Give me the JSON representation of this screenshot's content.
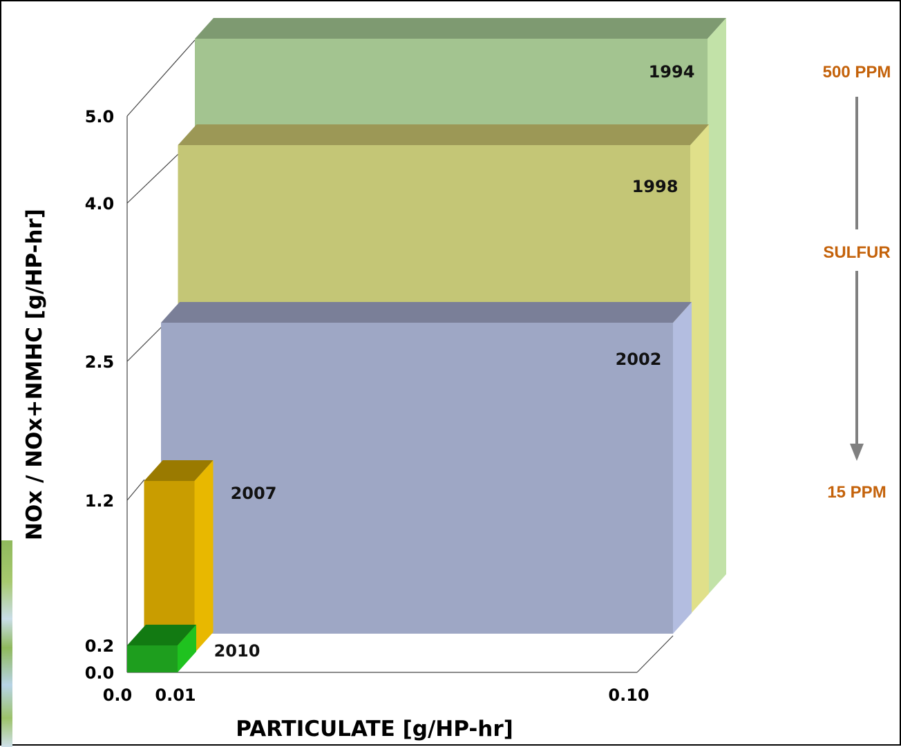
{
  "chart_data": {
    "type": "bar",
    "style": "3d-rectangles",
    "xlabel": "PARTICULATE [g/HP-hr]",
    "ylabel": "NOx / NOx+NMHC [g/HP-hr]",
    "x_ticks": [
      "0.0",
      "0.01",
      "0.10"
    ],
    "y_ticks": [
      "0.0",
      "0.2",
      "1.2",
      "2.5",
      "4.0",
      "5.0"
    ],
    "x_tick_values": [
      0.0,
      0.01,
      0.1
    ],
    "y_tick_values": [
      0.0,
      0.2,
      1.2,
      2.5,
      4.0,
      5.0
    ],
    "series": [
      {
        "name": "1994",
        "particulate": 0.1,
        "nox": 5.0,
        "color": "#a3c490",
        "top_color": "#7e9a71",
        "side_color": "#c2e2a8"
      },
      {
        "name": "1998",
        "particulate": 0.1,
        "nox": 4.0,
        "color": "#c4c676",
        "top_color": "#9c9856",
        "side_color": "#e0e08a"
      },
      {
        "name": "2002",
        "particulate": 0.1,
        "nox": 2.5,
        "color": "#9ea7c5",
        "top_color": "#7a7f98",
        "side_color": "#b3bde0"
      },
      {
        "name": "2007",
        "particulate": 0.01,
        "nox": 1.2,
        "color": "#c99d00",
        "top_color": "#9a7a00",
        "side_color": "#e8b800"
      },
      {
        "name": "2010",
        "particulate": 0.01,
        "nox": 0.2,
        "color": "#1e9e1e",
        "top_color": "#127a12",
        "side_color": "#1fc21f"
      }
    ]
  },
  "sulfur_scale": {
    "top": "500 PPM",
    "middle": "SULFUR",
    "bottom": "15 PPM",
    "arrow_color": "#808080",
    "text_color": "#c4620a"
  }
}
